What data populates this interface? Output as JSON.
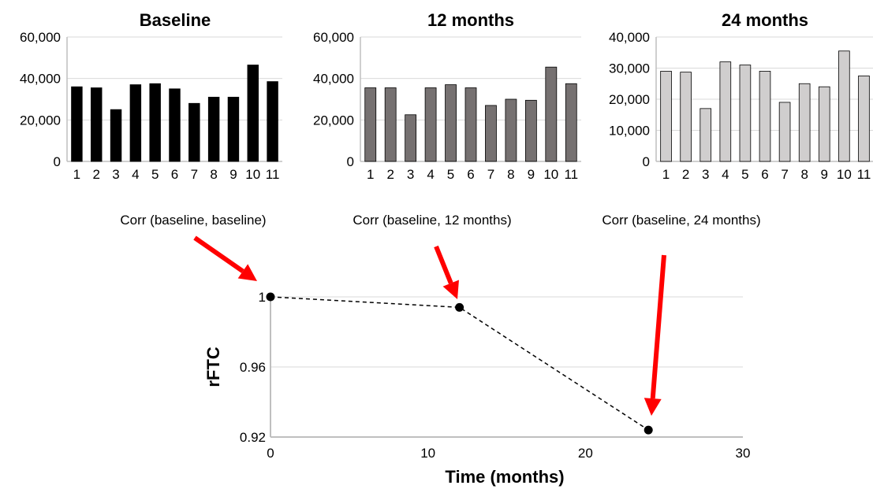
{
  "chart_data": [
    {
      "type": "bar",
      "title": "Baseline",
      "categories": [
        "1",
        "2",
        "3",
        "4",
        "5",
        "6",
        "7",
        "8",
        "9",
        "10",
        "11"
      ],
      "values": [
        36000,
        35500,
        25000,
        37000,
        37500,
        35000,
        28000,
        31000,
        31000,
        46500,
        38500
      ],
      "ylim": [
        0,
        60000
      ],
      "yticks": [
        "0",
        "20,000",
        "40,000",
        "60,000"
      ],
      "ytick_values": [
        0,
        20000,
        40000,
        60000
      ],
      "grid": true,
      "color": "#000000"
    },
    {
      "type": "bar",
      "title": "12 months",
      "categories": [
        "1",
        "2",
        "3",
        "4",
        "5",
        "6",
        "7",
        "8",
        "9",
        "10",
        "11"
      ],
      "values": [
        35500,
        35500,
        22500,
        35500,
        37000,
        35500,
        27000,
        30000,
        29500,
        45500,
        37500
      ],
      "ylim": [
        0,
        60000
      ],
      "yticks": [
        "0",
        "20,000",
        "40,000",
        "60,000"
      ],
      "ytick_values": [
        0,
        20000,
        40000,
        60000
      ],
      "grid": true,
      "color": "#767171"
    },
    {
      "type": "bar",
      "title": "24 months",
      "categories": [
        "1",
        "2",
        "3",
        "4",
        "5",
        "6",
        "7",
        "8",
        "9",
        "10",
        "11"
      ],
      "values": [
        29000,
        28700,
        17000,
        32000,
        31000,
        29000,
        19000,
        25000,
        24000,
        35500,
        27500
      ],
      "ylim": [
        0,
        40000
      ],
      "yticks": [
        "0",
        "10,000",
        "20,000",
        "30,000",
        "40,000"
      ],
      "ytick_values": [
        0,
        10000,
        20000,
        30000,
        40000
      ],
      "grid": true,
      "color": "#d0cece"
    },
    {
      "type": "line",
      "title": "",
      "xlabel": "Time (months)",
      "ylabel": "rFTC",
      "x": [
        0,
        12,
        24
      ],
      "y": [
        1.0,
        0.994,
        0.924
      ],
      "xlim": [
        0,
        30
      ],
      "ylim": [
        0.92,
        1.0
      ],
      "xticks": [
        "0",
        "10",
        "20",
        "30"
      ],
      "xtick_values": [
        0,
        10,
        20,
        30
      ],
      "yticks": [
        "0.92",
        "0.96",
        "1"
      ],
      "ytick_values": [
        0.92,
        0.96,
        1.0
      ],
      "grid": true,
      "line_style": "dashed",
      "annotations": [
        "Corr (baseline, baseline)",
        "Corr (baseline, 12 months)",
        "Corr (baseline, 24 months)"
      ],
      "arrow_color": "#ff0000"
    }
  ]
}
